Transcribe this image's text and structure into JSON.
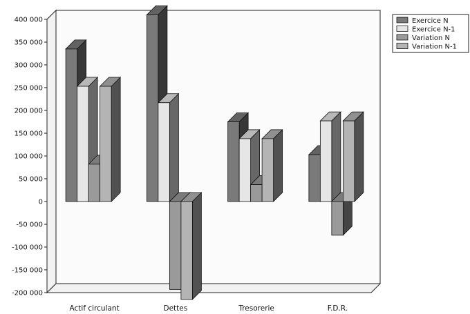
{
  "chart_data": {
    "type": "bar",
    "style": "3d-clustered-column",
    "categories": [
      "Actif circulant",
      "Dettes",
      "Tresorerie",
      "F.D.R."
    ],
    "series": [
      {
        "name": "Exercice N",
        "values": [
          335000,
          410000,
          175000,
          103000
        ]
      },
      {
        "name": "Exercice N-1",
        "values": [
          253000,
          217000,
          138000,
          177000
        ]
      },
      {
        "name": "Variation N",
        "values": [
          82000,
          -193000,
          37000,
          -74000
        ]
      },
      {
        "name": "Variation N-1",
        "values": [
          253000,
          -215000,
          138000,
          177000
        ]
      }
    ],
    "ylim": [
      -200000,
      400000
    ],
    "yticks": [
      400000,
      350000,
      300000,
      250000,
      200000,
      150000,
      100000,
      50000,
      0,
      -50000,
      -100000,
      -150000,
      -200000
    ],
    "ytick_labels": [
      "400 000",
      "350 000",
      "300 000",
      "250 000",
      "200 000",
      "150 000",
      "100 000",
      "50 000",
      "0",
      "-50 000",
      "-100 000",
      "-150 000",
      "-200 000"
    ],
    "legend_position": "top-right",
    "grid": false,
    "colors": {
      "Exercice N": "#7a7a7a",
      "Exercice N-1": "#e6e6e6",
      "Variation N": "#9a9a9a",
      "Variation N-1": "#b4b4b4"
    }
  }
}
